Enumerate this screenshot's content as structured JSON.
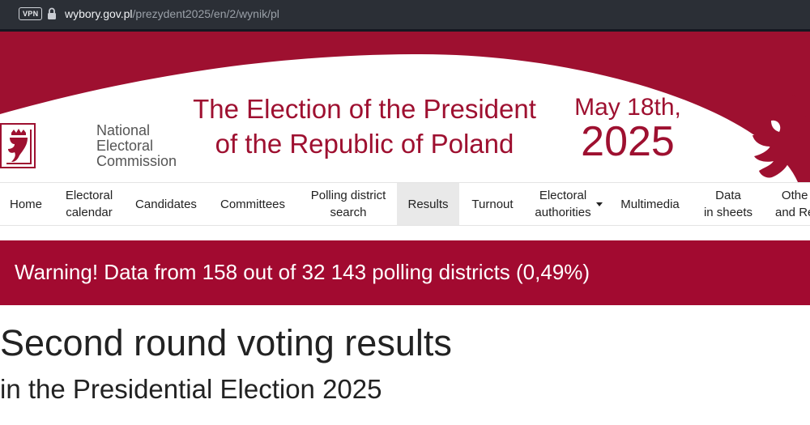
{
  "browser": {
    "vpn_badge": "VPN",
    "url_host": "wybory.gov.pl",
    "url_path": "/prezydent2025/en/2/wynik/pl"
  },
  "header": {
    "logo_lines": [
      "National",
      "Electoral",
      "Commission"
    ],
    "title_line1": "The Election of the President",
    "title_line2": "of the Republic of Poland",
    "date_line1": "May 18th,",
    "date_line2": "2025",
    "brand_color": "#9e1030"
  },
  "nav": {
    "items": [
      {
        "lines": [
          "Home"
        ]
      },
      {
        "lines": [
          "Electoral",
          "calendar"
        ]
      },
      {
        "lines": [
          "Candidates"
        ]
      },
      {
        "lines": [
          "Committees"
        ]
      },
      {
        "lines": [
          "Polling district",
          "search"
        ]
      },
      {
        "lines": [
          "Results"
        ],
        "active": true
      },
      {
        "lines": [
          "Turnout"
        ]
      },
      {
        "lines": [
          "Electoral",
          "authorities"
        ],
        "dropdown": true
      },
      {
        "lines": [
          "Multimedia"
        ]
      },
      {
        "lines": [
          "Data",
          "in sheets"
        ]
      },
      {
        "lines": [
          "Othe",
          "and Re"
        ]
      }
    ]
  },
  "warning": {
    "text": "Warning! Data from 158 out of 32 143 polling districts (0,49%)",
    "color": "#a20a30"
  },
  "main": {
    "heading": "Second round voting results",
    "subheading": "in the Presidential Election 2025"
  }
}
